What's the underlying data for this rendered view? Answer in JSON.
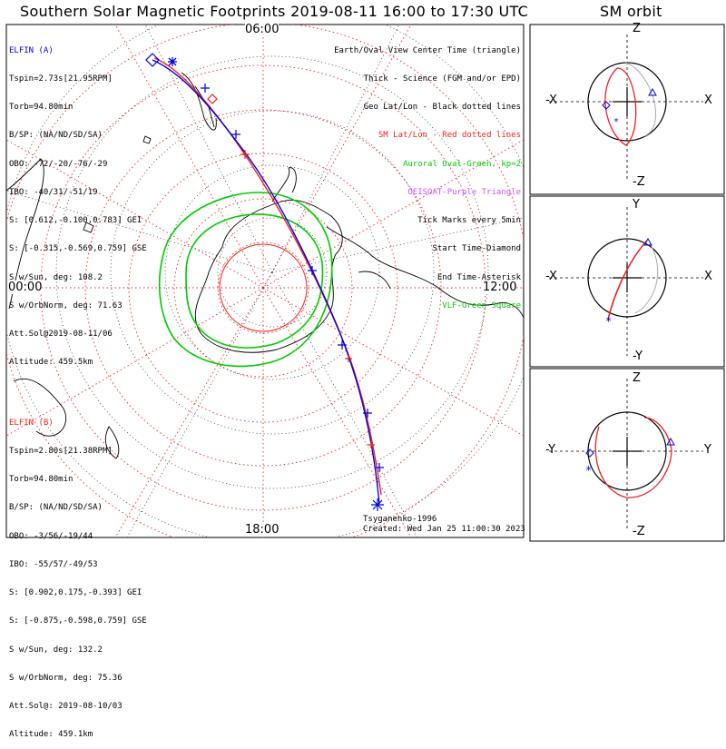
{
  "title": "Southern Solar Magnetic Footprints 2019-08-11 16:00 to 17:30 UTC",
  "orbit_title": "SM orbit",
  "elfin_a": {
    "header": "ELFIN (A)",
    "lines": [
      "Tspin=2.73s[21.95RPM]",
      "Torb=94.80min",
      "B/SP: (NA/ND/SD/SA)",
      "OBO: -72/-20/-76/-29",
      "IBO: -40/31/-51/19",
      "S: [0.612,-0.100,0.783] GEI",
      "S: [-0.315,-0.569,0.759] GSE",
      "S w/Sun, deg: 108.2",
      "S w/OrbNorm, deg: 71.63",
      "Att.Sol@2019-08-11/06",
      "Altitude: 459.5km"
    ]
  },
  "elfin_b": {
    "header": "ELFIN (B)",
    "lines": [
      "Tspin=2.80s[21.38RPM]",
      "Torb=94.80min",
      "B/SP: (NA/ND/SD/SA)",
      "OBO: -3/56/-19/44",
      "IBO: -55/57/-49/53",
      "S: [0.902,0.175,-0.393] GEI",
      "S: [-0.875,-0.598,0.759] GSE",
      "S w/Sun, deg: 132.2",
      "S w/OrbNorm, deg: 75.36",
      "Att.Sol@: 2019-08-10/03",
      "Altitude: 459.1km"
    ]
  },
  "legend": [
    {
      "text": "Earth/Oval View Center Time (triangle)",
      "color": "#000000"
    },
    {
      "text": "Thick - Science (FGM and/or EPD)",
      "color": "#000000"
    },
    {
      "text": "Geo Lat/Lon - Black dotted lines",
      "color": "#000000"
    },
    {
      "text": "SM Lat/Lon - Red dotted lines",
      "color": "#ee2222"
    },
    {
      "text": "Auroral Oval-Green, kp=2",
      "color": "#00cc00"
    },
    {
      "text": "GEISOAT-Purple Triangle",
      "color": "#cc55ff"
    },
    {
      "text": "Tick Marks every 5min",
      "color": "#000000"
    },
    {
      "text": "Start Time-Diamond",
      "color": "#000000"
    },
    {
      "text": "End Time-Asterisk",
      "color": "#000000"
    },
    {
      "text": "VLF-Green Square",
      "color": "#00cc00"
    }
  ],
  "footer": {
    "model": "Tsyganenko-1996",
    "created": "Created: Wed Jan 25 11:00:30 2023"
  },
  "colors": {
    "elfin_a": "#0000dd",
    "elfin_b": "#ee2222",
    "oval": "#00cc00",
    "grid_sm": "#ee2222",
    "geisoat": "#cc55ff"
  },
  "chart_data": {
    "type": "polar footprint map",
    "hemisphere": "Southern",
    "time_labels": {
      "top": "06:00",
      "right": "12:00",
      "bottom": "18:00",
      "left": "00:00"
    },
    "orbit_panels": [
      {
        "top": "Z",
        "bottom": "-Z",
        "left": "-X",
        "right": "X"
      },
      {
        "top": "Y",
        "bottom": "-Y",
        "left": "-X",
        "right": "X"
      },
      {
        "top": "Z",
        "bottom": "-Z",
        "left": "-Y",
        "right": "Y"
      }
    ]
  }
}
